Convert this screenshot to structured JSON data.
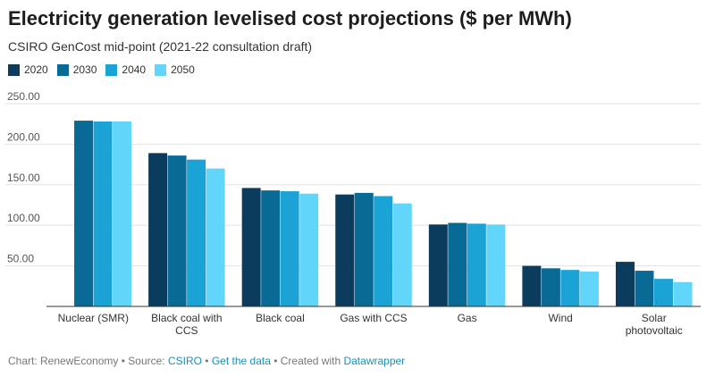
{
  "chart_data": {
    "type": "bar",
    "title": "Electricity generation levelised cost projections ($ per MWh)",
    "subtitle": "CSIRO GenCost mid-point (2021-22 consultation draft)",
    "categories": [
      [
        "Nuclear (SMR)"
      ],
      [
        "Black coal with",
        "CCS"
      ],
      [
        "Black coal"
      ],
      [
        "Gas with CCS"
      ],
      [
        "Gas"
      ],
      [
        "Wind"
      ],
      [
        "Solar",
        "photovoltaic"
      ]
    ],
    "series": [
      {
        "name": "2020",
        "color": "#0b3c5d",
        "values": [
          null,
          189,
          146,
          138,
          101,
          50,
          55
        ]
      },
      {
        "name": "2030",
        "color": "#0a6a96",
        "values": [
          229,
          186,
          143,
          140,
          103,
          47,
          44
        ]
      },
      {
        "name": "2040",
        "color": "#1aa3d4",
        "values": [
          228,
          181,
          142,
          136,
          102,
          45,
          34
        ]
      },
      {
        "name": "2050",
        "color": "#62d5fb",
        "values": [
          228,
          170,
          139,
          127,
          101,
          43,
          30
        ]
      }
    ],
    "yticks": [
      "50.00",
      "100.00",
      "150.00",
      "200.00",
      "250.00"
    ],
    "ylim": [
      0,
      250
    ],
    "grid": true,
    "legend_position": "top-left"
  },
  "footer": {
    "chart_by": "Chart: RenewEconomy",
    "sep1": " • Source: ",
    "source": "CSIRO",
    "sep2": " • ",
    "get_data": "Get the data",
    "sep3": " • Created with ",
    "tool": "Datawrapper"
  }
}
